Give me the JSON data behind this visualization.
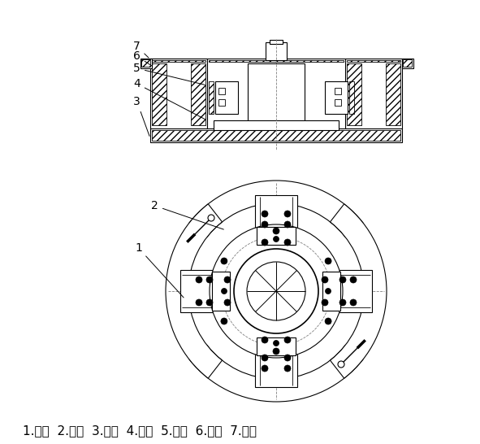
{
  "figure_width": 5.91,
  "figure_height": 5.46,
  "dpi": 100,
  "bg_color": "#ffffff",
  "caption": "1.托盘  2.手柄  3.底座  4.转环  5.销钉  6.滑块  7.抱爪",
  "caption_fontsize": 11,
  "label_fontsize": 10
}
